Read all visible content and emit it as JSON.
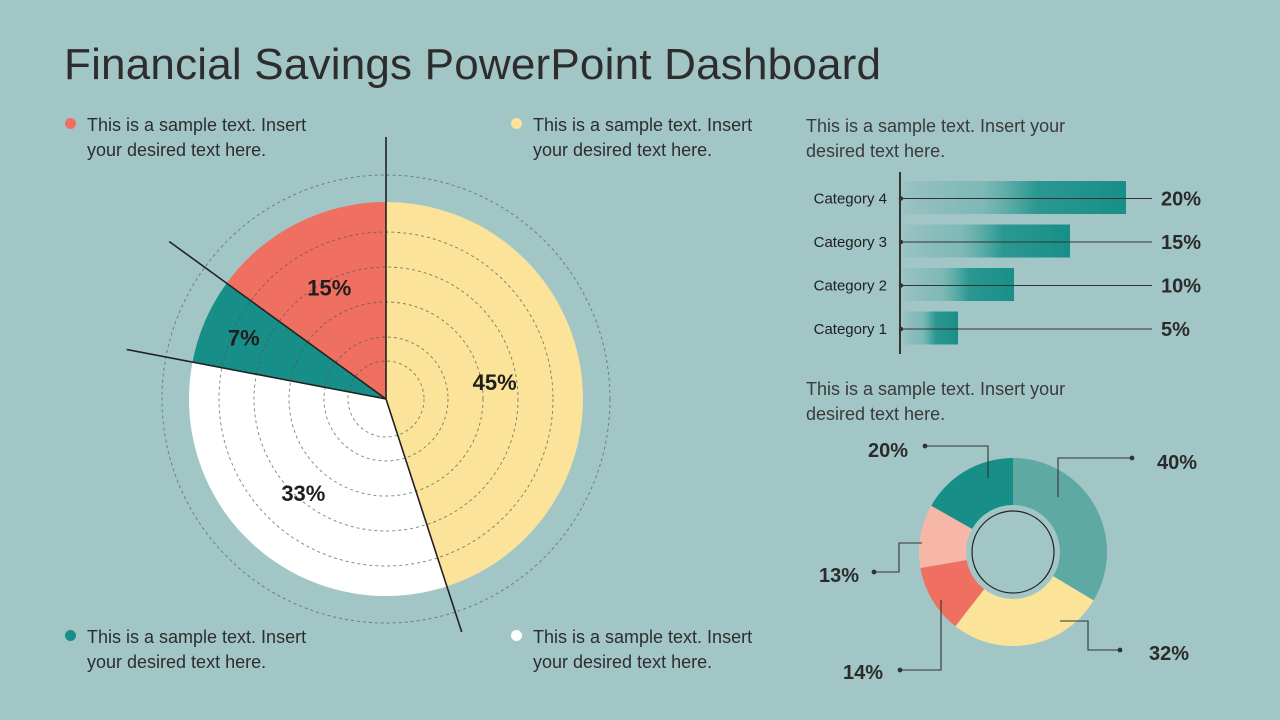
{
  "title": "Financial Savings PowerPoint Dashboard",
  "legend": [
    {
      "color": "#ef6f61",
      "text": "This is a sample text. Insert your desired text here."
    },
    {
      "color": "#fbe39a",
      "text": "This is a sample text. Insert your desired text here."
    },
    {
      "color": "#178f88",
      "text": "This is a sample text. Insert your desired text here."
    },
    {
      "color": "#ffffff",
      "text": "This is a sample text. Insert your desired text here."
    }
  ],
  "bar_section_text": "This is a sample text. Insert your desired text here.",
  "donut_section_text": "This is a sample text. Insert your desired text here.",
  "colors": {
    "background": "#a2c6c6",
    "red": "#ef6f61",
    "yellow": "#fbe39a",
    "teal": "#178f88",
    "white": "#ffffff",
    "light_teal": "#5fa9a5",
    "pink": "#f6b7a8"
  },
  "chart_data": [
    {
      "type": "pie",
      "slices": [
        {
          "label": "45%",
          "value": 45,
          "color": "#fbe39a"
        },
        {
          "label": "33%",
          "value": 33,
          "color": "#ffffff"
        },
        {
          "label": "7%",
          "value": 7,
          "color": "#178f88"
        },
        {
          "label": "15%",
          "value": 15,
          "color": "#ef6f61"
        }
      ]
    },
    {
      "type": "bar",
      "orientation": "horizontal",
      "categories": [
        "Category 4",
        "Category 3",
        "Category 2",
        "Category 1"
      ],
      "values": [
        20,
        15,
        10,
        5
      ],
      "value_labels": [
        "20%",
        "15%",
        "10%",
        "5%"
      ],
      "xlim": [
        0,
        20
      ],
      "color": "#178f88"
    },
    {
      "type": "pie",
      "donut": true,
      "slices": [
        {
          "label": "40%",
          "value": 40,
          "color": "#5fa9a5"
        },
        {
          "label": "32%",
          "value": 32,
          "color": "#fbe39a"
        },
        {
          "label": "14%",
          "value": 14,
          "color": "#ef6f61"
        },
        {
          "label": "13%",
          "value": 13,
          "color": "#f6b7a8"
        },
        {
          "label": "20%",
          "value": 20,
          "color": "#178f88"
        }
      ]
    }
  ]
}
